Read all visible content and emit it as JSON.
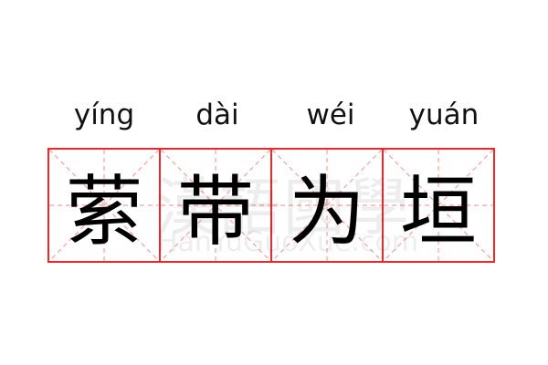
{
  "colors": {
    "border": "#f0282a",
    "guide": "#f7a0a0",
    "text": "#000000"
  },
  "characters": [
    {
      "pinyin": "yíng",
      "hanzi": "萦"
    },
    {
      "pinyin": "dài",
      "hanzi": "带"
    },
    {
      "pinyin": "wéi",
      "hanzi": "为"
    },
    {
      "pinyin": "yuán",
      "hanzi": "垣"
    }
  ],
  "watermark": {
    "chinese": "漢語國學",
    "latin": "HanYuGuoXue.com"
  }
}
